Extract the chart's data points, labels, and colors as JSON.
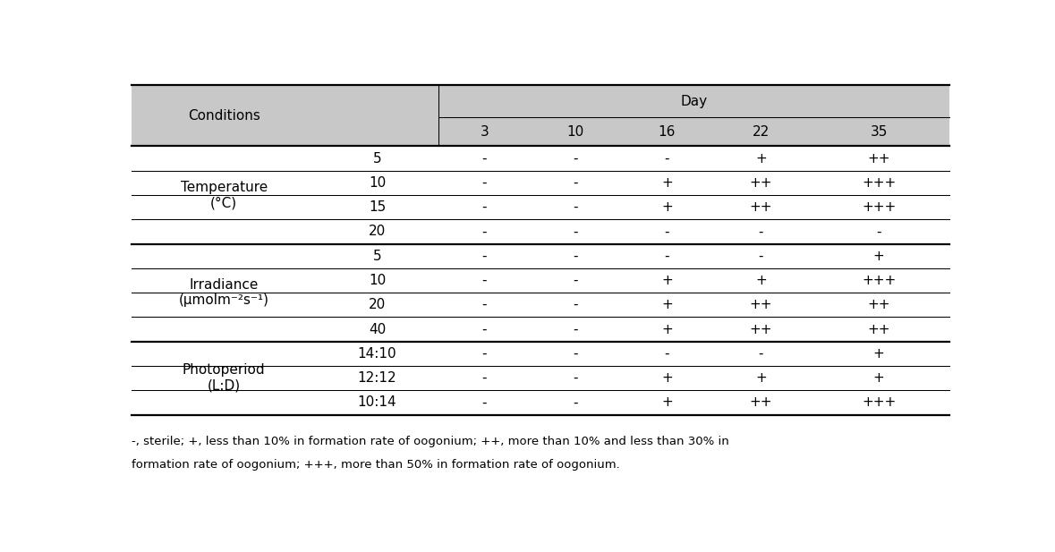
{
  "header_bg": "#c8c8c8",
  "figsize": [
    11.79,
    6.17
  ],
  "dpi": 100,
  "days": [
    "3",
    "10",
    "16",
    "22",
    "35"
  ],
  "conditions_label": "Conditions",
  "day_label": "Day",
  "groups": [
    {
      "group_label": "Temperature\n(°C)",
      "rows": [
        {
          "sub": "5",
          "values": [
            "-",
            "-",
            "-",
            "+",
            "++"
          ]
        },
        {
          "sub": "10",
          "values": [
            "-",
            "-",
            "+",
            "++",
            "+++"
          ]
        },
        {
          "sub": "15",
          "values": [
            "-",
            "-",
            "+",
            "++",
            "+++"
          ]
        },
        {
          "sub": "20",
          "values": [
            "-",
            "-",
            "-",
            "-",
            "-"
          ]
        }
      ]
    },
    {
      "group_label": "Irradiance\n(μmolm⁻²s⁻¹)",
      "rows": [
        {
          "sub": "5",
          "values": [
            "-",
            "-",
            "-",
            "-",
            "+"
          ]
        },
        {
          "sub": "10",
          "values": [
            "-",
            "-",
            "+",
            "+",
            "+++"
          ]
        },
        {
          "sub": "20",
          "values": [
            "-",
            "-",
            "+",
            "++",
            "++"
          ]
        },
        {
          "sub": "40",
          "values": [
            "-",
            "-",
            "+",
            "++",
            "++"
          ]
        }
      ]
    },
    {
      "group_label": "Photoperiod\n(L:D)",
      "rows": [
        {
          "sub": "14:10",
          "values": [
            "-",
            "-",
            "-",
            "-",
            "+"
          ]
        },
        {
          "sub": "12:12",
          "values": [
            "-",
            "-",
            "+",
            "+",
            "+"
          ]
        },
        {
          "sub": "10:14",
          "values": [
            "-",
            "-",
            "+",
            "++",
            "+++"
          ]
        }
      ]
    }
  ],
  "footnote": "-, sterile; +, less than 10% in formation rate of oogonium; ++, more than 10% and less than 30% in\nformation rate of oogonium; +++, more than 50% in formation rate of oogonium."
}
